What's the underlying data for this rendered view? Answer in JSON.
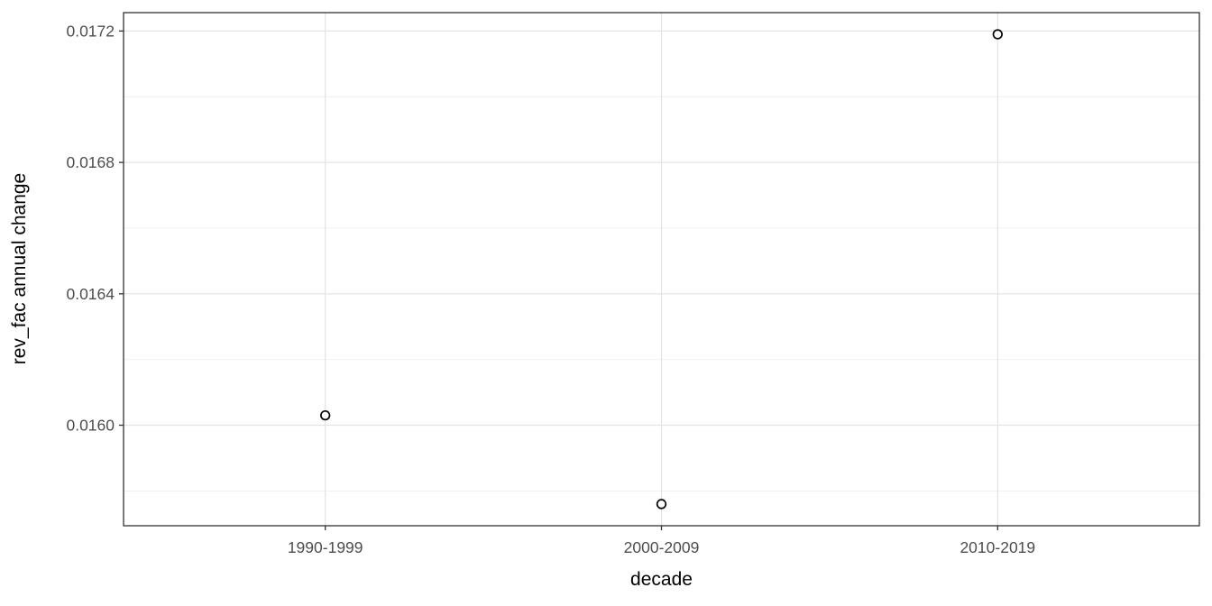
{
  "chart_data": {
    "type": "scatter",
    "title": "",
    "xlabel": "decade",
    "ylabel": "rev_fac annual change",
    "categories": [
      "1990-1999",
      "2000-2009",
      "2010-2019"
    ],
    "values": [
      0.01603,
      0.01576,
      0.01719
    ],
    "y_tick_values": [
      0.016,
      0.0164,
      0.0168,
      0.0172
    ],
    "y_tick_labels": [
      "0.0160",
      "0.0164",
      "0.0168",
      "0.0172"
    ],
    "y_minor_tick_values": [
      0.0158,
      0.0162,
      0.0166,
      0.017
    ],
    "ylim": [
      0.015694,
      0.017256
    ],
    "grid": true,
    "legend": false,
    "point_shape": "open-circle",
    "colors": {
      "background": "#ffffff",
      "panel_background": "#ffffff",
      "panel_border": "#333333",
      "grid_major": "#e4e4e4",
      "grid_minor": "#efefef",
      "tick_mark": "#333333",
      "tick_label": "#4d4d4d",
      "axis_title": "#000000",
      "point_stroke": "#000000",
      "point_fill": "#ffffff"
    }
  }
}
